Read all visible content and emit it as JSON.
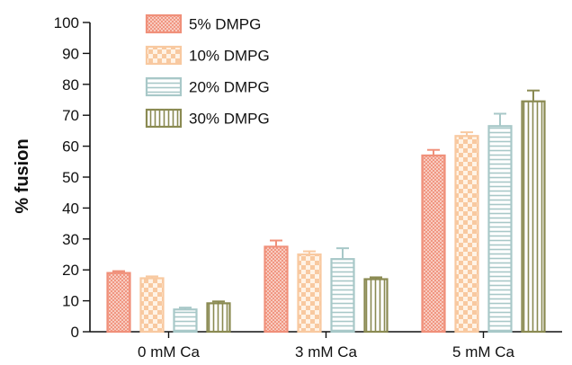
{
  "chart_data": {
    "type": "bar",
    "title": "",
    "xlabel": "",
    "ylabel": "% fusion",
    "ylim": [
      0,
      100
    ],
    "yticks": [
      0,
      10,
      20,
      30,
      40,
      50,
      60,
      70,
      80,
      90,
      100
    ],
    "categories": [
      "0 mM Ca",
      "3 mM Ca",
      "5 mM Ca"
    ],
    "grid": false,
    "legend_position": "top-left",
    "series": [
      {
        "name": "5% DMPG",
        "values": [
          19,
          27.5,
          57
        ],
        "errors": [
          0.6,
          2.0,
          1.8
        ],
        "color": "#f0907a",
        "pattern": "crosshatch"
      },
      {
        "name": "10% DMPG",
        "values": [
          17.3,
          25,
          63.3
        ],
        "errors": [
          0.6,
          1.0,
          1.2
        ],
        "color": "#f8c9a0",
        "pattern": "checker"
      },
      {
        "name": "20% DMPG",
        "values": [
          7.2,
          23.5,
          66.5
        ],
        "errors": [
          0.6,
          3.5,
          4.0
        ],
        "color": "#a8c8c8",
        "pattern": "horizontal-lines"
      },
      {
        "name": "30% DMPG",
        "values": [
          9.2,
          17,
          74.5
        ],
        "errors": [
          0.6,
          0.6,
          3.5
        ],
        "color": "#8a8a52",
        "pattern": "vertical-lines"
      }
    ]
  }
}
